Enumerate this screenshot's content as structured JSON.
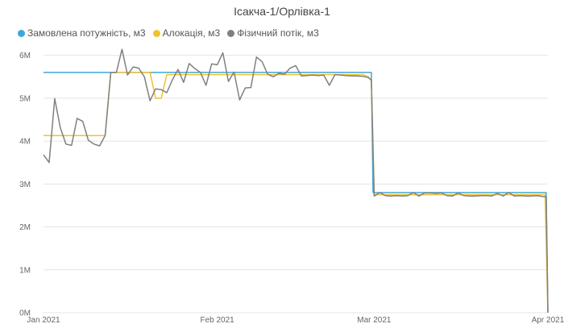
{
  "chart_data": {
    "type": "line",
    "title": "Ісакча-1/Орлівка-1",
    "xlabel": "",
    "ylabel": "",
    "ylim": [
      0,
      6200000
    ],
    "y_ticks": [
      {
        "value": 0,
        "label": "0M"
      },
      {
        "value": 1000000,
        "label": "1M"
      },
      {
        "value": 2000000,
        "label": "2M"
      },
      {
        "value": 3000000,
        "label": "3M"
      },
      {
        "value": 4000000,
        "label": "4M"
      },
      {
        "value": 5000000,
        "label": "5M"
      },
      {
        "value": 6000000,
        "label": "6M"
      }
    ],
    "x_range_days": [
      0,
      90
    ],
    "x_ticks": [
      {
        "day": 0,
        "label": "Jan 2021"
      },
      {
        "day": 31,
        "label": "Feb 2021"
      },
      {
        "day": 59,
        "label": "Mar 2021"
      },
      {
        "day": 90,
        "label": "Apr 2021"
      }
    ],
    "series": [
      {
        "name": "Замовлена потужність, м3",
        "color": "#3fa7d6",
        "points": [
          [
            0,
            5600000
          ],
          [
            58.5,
            5600000
          ],
          [
            58.8,
            2800000
          ],
          [
            89.7,
            2800000
          ],
          [
            90,
            0
          ]
        ]
      },
      {
        "name": "Алокація, м3",
        "color": "#f2c12e",
        "points": [
          [
            0,
            4130000
          ],
          [
            11,
            4130000
          ],
          [
            12,
            5600000
          ],
          [
            19,
            5600000
          ],
          [
            20,
            5000000
          ],
          [
            21,
            5000000
          ],
          [
            22,
            5550000
          ],
          [
            57,
            5550000
          ],
          [
            58,
            5500000
          ],
          [
            58.5,
            5400000
          ],
          [
            59,
            2750000
          ],
          [
            89.5,
            2750000
          ],
          [
            90,
            0
          ]
        ]
      },
      {
        "name": "Фізичний потік, м3",
        "color": "#808080",
        "points": [
          [
            0,
            3680000
          ],
          [
            1,
            3500000
          ],
          [
            2,
            4990000
          ],
          [
            3,
            4310000
          ],
          [
            4,
            3930000
          ],
          [
            5,
            3900000
          ],
          [
            6,
            4530000
          ],
          [
            7,
            4460000
          ],
          [
            8,
            4020000
          ],
          [
            9,
            3930000
          ],
          [
            10,
            3890000
          ],
          [
            11,
            4130000
          ],
          [
            12,
            5600000
          ],
          [
            13,
            5600000
          ],
          [
            14,
            6140000
          ],
          [
            15,
            5540000
          ],
          [
            16,
            5730000
          ],
          [
            17,
            5700000
          ],
          [
            18,
            5500000
          ],
          [
            19,
            4940000
          ],
          [
            20,
            5220000
          ],
          [
            21,
            5200000
          ],
          [
            22,
            5130000
          ],
          [
            23,
            5430000
          ],
          [
            24,
            5670000
          ],
          [
            25,
            5370000
          ],
          [
            26,
            5810000
          ],
          [
            27,
            5690000
          ],
          [
            28,
            5600000
          ],
          [
            29,
            5300000
          ],
          [
            30,
            5800000
          ],
          [
            31,
            5780000
          ],
          [
            32,
            6060000
          ],
          [
            33,
            5390000
          ],
          [
            34,
            5610000
          ],
          [
            35,
            4960000
          ],
          [
            36,
            5240000
          ],
          [
            37,
            5250000
          ],
          [
            38,
            5960000
          ],
          [
            39,
            5850000
          ],
          [
            40,
            5560000
          ],
          [
            41,
            5500000
          ],
          [
            42,
            5580000
          ],
          [
            43,
            5560000
          ],
          [
            44,
            5700000
          ],
          [
            45,
            5760000
          ],
          [
            46,
            5520000
          ],
          [
            47,
            5530000
          ],
          [
            48,
            5540000
          ],
          [
            49,
            5530000
          ],
          [
            50,
            5540000
          ],
          [
            51,
            5300000
          ],
          [
            52,
            5550000
          ],
          [
            53,
            5540000
          ],
          [
            54,
            5530000
          ],
          [
            55,
            5520000
          ],
          [
            56,
            5520000
          ],
          [
            57,
            5510000
          ],
          [
            58,
            5480000
          ],
          [
            58.5,
            5420000
          ],
          [
            59,
            2720000
          ],
          [
            60,
            2800000
          ],
          [
            61,
            2730000
          ],
          [
            62,
            2720000
          ],
          [
            63,
            2730000
          ],
          [
            64,
            2720000
          ],
          [
            65,
            2730000
          ],
          [
            66,
            2800000
          ],
          [
            67,
            2720000
          ],
          [
            68,
            2790000
          ],
          [
            69,
            2790000
          ],
          [
            70,
            2780000
          ],
          [
            71,
            2790000
          ],
          [
            72,
            2730000
          ],
          [
            73,
            2720000
          ],
          [
            74,
            2790000
          ],
          [
            75,
            2730000
          ],
          [
            76,
            2720000
          ],
          [
            77,
            2720000
          ],
          [
            78,
            2730000
          ],
          [
            79,
            2730000
          ],
          [
            80,
            2720000
          ],
          [
            81,
            2780000
          ],
          [
            82,
            2720000
          ],
          [
            83,
            2800000
          ],
          [
            84,
            2720000
          ],
          [
            85,
            2730000
          ],
          [
            86,
            2720000
          ],
          [
            87,
            2720000
          ],
          [
            88,
            2730000
          ],
          [
            89,
            2710000
          ],
          [
            89.7,
            2700000
          ],
          [
            90,
            0
          ]
        ]
      }
    ],
    "grid": "horizontal",
    "legend": "top-left"
  }
}
